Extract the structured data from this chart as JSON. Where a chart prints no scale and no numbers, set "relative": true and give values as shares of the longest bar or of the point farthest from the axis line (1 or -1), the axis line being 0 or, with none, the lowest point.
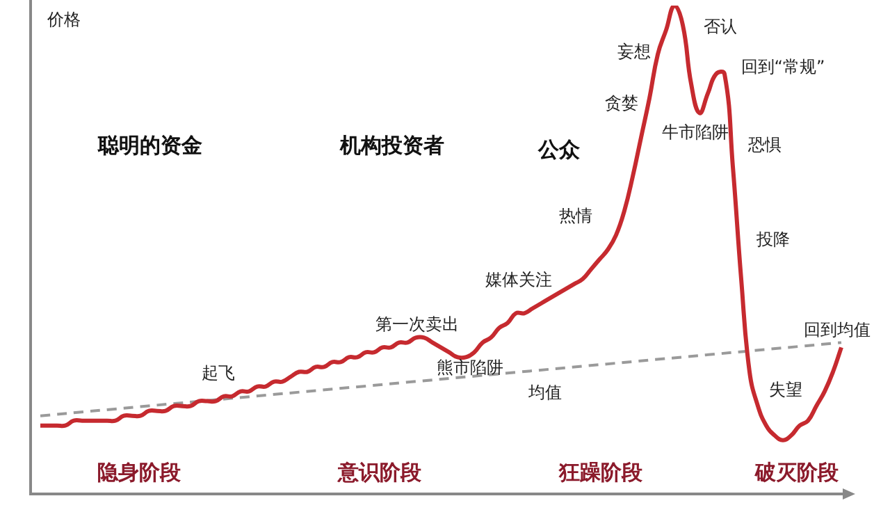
{
  "chart_data": {
    "type": "line",
    "relative": true,
    "ylabel": "价格",
    "categories": [
      null,
      null,
      null,
      null,
      null,
      null,
      null,
      null,
      null,
      null,
      null,
      null,
      null,
      null,
      null,
      null,
      null,
      null,
      null,
      null,
      null,
      null,
      null,
      null,
      null,
      null,
      null,
      null,
      null,
      null,
      null,
      null,
      null,
      null,
      null,
      null,
      null,
      null,
      null,
      null,
      null,
      null,
      null,
      null,
      null,
      null,
      null,
      null,
      null,
      null,
      null,
      null,
      null,
      null,
      null,
      null,
      null,
      null,
      null,
      null,
      null,
      null,
      null,
      null,
      null,
      null,
      null,
      null,
      null,
      null,
      null,
      null,
      null,
      null,
      null,
      null,
      null,
      null,
      null,
      null,
      null,
      null,
      null,
      null,
      null,
      null,
      null,
      null,
      null,
      null,
      null,
      null,
      null,
      null,
      null,
      null,
      null
    ],
    "series": [
      {
        "color": "#c62a2f",
        "line_style": "solid",
        "values": [
          0.14,
          0.14,
          0.14,
          0.14,
          0.15,
          0.15,
          0.15,
          0.15,
          0.15,
          0.15,
          0.16,
          0.16,
          0.16,
          0.17,
          0.17,
          0.17,
          0.18,
          0.18,
          0.18,
          0.19,
          0.19,
          0.19,
          0.2,
          0.2,
          0.21,
          0.21,
          0.22,
          0.22,
          0.23,
          0.23,
          0.24,
          0.25,
          0.25,
          0.26,
          0.26,
          0.27,
          0.27,
          0.28,
          0.28,
          0.29,
          0.29,
          0.3,
          0.3,
          0.31,
          0.31,
          0.32,
          0.32,
          0.31,
          0.3,
          0.29,
          0.28,
          0.28,
          0.29,
          0.31,
          0.32,
          0.34,
          0.35,
          0.37,
          0.37,
          0.38,
          0.39,
          0.4,
          0.41,
          0.42,
          0.43,
          0.44,
          0.46,
          0.48,
          0.5,
          0.53,
          0.58,
          0.65,
          0.73,
          0.81,
          0.9,
          0.95,
          1,
          0.96,
          0.84,
          0.78,
          0.82,
          0.86,
          0.86,
          0.67,
          0.44,
          0.25,
          0.18,
          0.14,
          0.12,
          0.11,
          0.12,
          0.14,
          0.15,
          0.18,
          0.21,
          0.25,
          0.3
        ]
      },
      {
        "color": "#9a9a9a",
        "line_style": "dashed",
        "values": [
          0.16,
          null,
          null,
          null,
          null,
          null,
          null,
          null,
          null,
          null,
          null,
          null,
          null,
          null,
          null,
          null,
          null,
          null,
          null,
          null,
          null,
          null,
          null,
          null,
          null,
          null,
          null,
          null,
          null,
          null,
          null,
          null,
          null,
          null,
          null,
          null,
          null,
          null,
          null,
          null,
          null,
          null,
          null,
          null,
          null,
          null,
          null,
          null,
          null,
          null,
          null,
          null,
          null,
          null,
          null,
          null,
          null,
          null,
          null,
          null,
          null,
          null,
          null,
          null,
          null,
          null,
          null,
          null,
          null,
          null,
          null,
          null,
          null,
          null,
          null,
          null,
          null,
          null,
          null,
          null,
          null,
          null,
          null,
          null,
          null,
          null,
          null,
          null,
          null,
          null,
          null,
          null,
          null,
          null,
          null,
          null,
          0.31
        ]
      }
    ],
    "annotations": [
      "聪明的资金",
      "机构投资者",
      "公众",
      "隐身阶段",
      "意识阶段",
      "狂躁阶段",
      "破灭阶段",
      "起飞",
      "第一次卖出",
      "熊市陷阱",
      "均值",
      "媒体关注",
      "热情",
      "贪婪",
      "妄想",
      "否认",
      "回到“常规”",
      "牛市陷阱",
      "恐惧",
      "投降",
      "失望",
      "回到均值"
    ]
  }
}
